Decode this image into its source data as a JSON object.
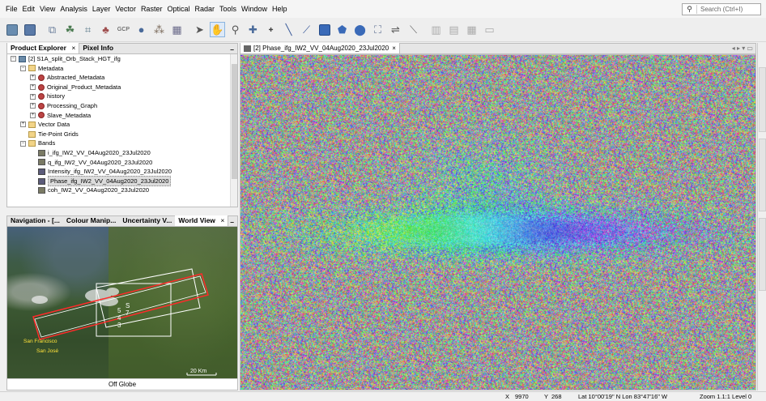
{
  "menu": [
    "File",
    "Edit",
    "View",
    "Analysis",
    "Layer",
    "Vector",
    "Raster",
    "Optical",
    "Radar",
    "Tools",
    "Window",
    "Help"
  ],
  "search": {
    "placeholder": "Search (Ctrl+I)"
  },
  "toolbar": {
    "buttons": [
      "open-product-icon",
      "save-product-icon",
      "band-maths-icon",
      "pixel-info-icon",
      "graticule-icon",
      "pin-icon",
      "gcp-icon",
      "region-icon",
      "swath-icon",
      "roi-icon",
      "select-tool-icon",
      "pan-tool-icon",
      "zoom-tool-icon",
      "pin-placing-icon",
      "gcp-placing-icon",
      "line-draw-icon",
      "polyline-draw-icon",
      "rectangle-draw-icon",
      "polygon-draw-icon",
      "ellipse-draw-icon",
      "range-finder-icon",
      "magic-wand-icon",
      "layer-editor-icon",
      "tile-evenly-icon",
      "tile-horizontal-icon",
      "tile-vertical-icon",
      "tile-single-icon"
    ],
    "gcp_label": "GCP"
  },
  "product_explorer": {
    "tabs": [
      {
        "label": "Product Explorer",
        "close": "×"
      },
      {
        "label": "Pixel Info"
      }
    ],
    "minimize": "–",
    "tree": [
      {
        "level": 0,
        "icon": "product",
        "expander": "−",
        "label": "[2] S1A_split_Orb_Stack_HGT_ifg"
      },
      {
        "level": 1,
        "icon": "folder",
        "expander": "−",
        "label": "Metadata"
      },
      {
        "level": 2,
        "icon": "meta",
        "expander": "+",
        "label": "Abstracted_Metadata"
      },
      {
        "level": 2,
        "icon": "meta",
        "expander": "+",
        "label": "Original_Product_Metadata"
      },
      {
        "level": 2,
        "icon": "meta",
        "expander": "+",
        "label": "history"
      },
      {
        "level": 2,
        "icon": "meta",
        "expander": "+",
        "label": "Processing_Graph"
      },
      {
        "level": 2,
        "icon": "meta",
        "expander": "+",
        "label": "Slave_Metadata"
      },
      {
        "level": 1,
        "icon": "folder",
        "expander": "+",
        "label": "Vector Data"
      },
      {
        "level": 1,
        "icon": "folder",
        "expander": "",
        "label": "Tie-Point Grids"
      },
      {
        "level": 1,
        "icon": "folder",
        "expander": "−",
        "label": "Bands"
      },
      {
        "level": 2,
        "icon": "band",
        "expander": "",
        "label": "i_ifg_IW2_VV_04Aug2020_23Jul2020"
      },
      {
        "level": 2,
        "icon": "band",
        "expander": "",
        "label": "q_ifg_IW2_VV_04Aug2020_23Jul2020"
      },
      {
        "level": 2,
        "icon": "bandv",
        "expander": "",
        "label": "Intensity_ifg_IW2_VV_04Aug2020_23Jul2020"
      },
      {
        "level": 2,
        "icon": "bandv",
        "expander": "",
        "label": "Phase_ifg_IW2_VV_04Aug2020_23Jul2020",
        "selected": true
      },
      {
        "level": 2,
        "icon": "band",
        "expander": "",
        "label": "coh_IW2_VV_04Aug2020_23Jul2020"
      }
    ]
  },
  "nav_panel": {
    "tabs": [
      {
        "label": "Navigation - [..."
      },
      {
        "label": "Colour Manip..."
      },
      {
        "label": "Uncertainty V..."
      },
      {
        "label": "World View",
        "close": "×"
      }
    ],
    "minimize": "–",
    "map_labels": {
      "city1": "San Francisco",
      "city2": "San José",
      "footprints": [
        "5",
        "4",
        "3",
        "S",
        "7"
      ]
    },
    "scale_label": "20 Km",
    "footer": "Off Globe"
  },
  "image_view": {
    "tab_label": "[2] Phase_ifg_IW2_VV_04Aug2020_23Jul2020",
    "tab_close": "×",
    "nav_arrows": "◂ ▸ ▾ ▭"
  },
  "status_bar": {
    "x_label": "X",
    "x_value": "9970",
    "y_label": "Y",
    "y_value": "268",
    "latlon": "Lat 10°00'19\" N  Lon 83°47'16\" W",
    "zoom": "Zoom 1.1:1  Level 0"
  },
  "colors": {
    "accent": "#3874c7",
    "footprint_red": "#ff2a2a",
    "footprint_white": "#ffffff",
    "label_yellow": "#ffe23a"
  }
}
